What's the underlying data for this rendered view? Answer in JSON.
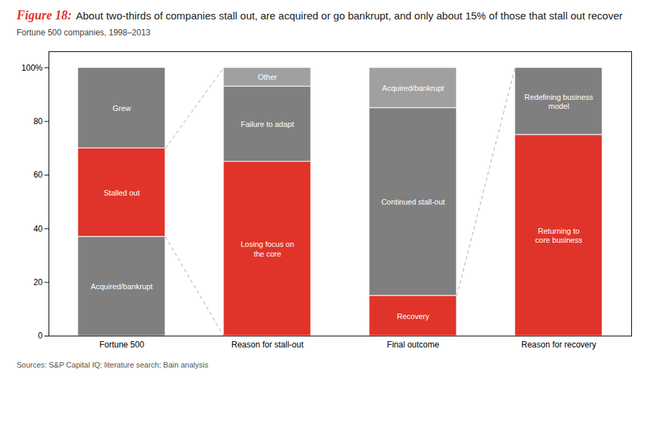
{
  "chart_data": {
    "type": "bar",
    "stacked": true,
    "title": "Figure 18: About two-thirds of companies stall out, are acquired or go bankrupt, and only about 15% of those that stall out recover",
    "subtitle": "Fortune 500 companies, 1998–2013",
    "source": "Sources: S&P Capital IQ; literature search; Bain analysis",
    "categories": [
      "Fortune 500",
      "Reason for stall-out",
      "Final outcome",
      "Reason for recovery"
    ],
    "bars": [
      {
        "segments": [
          {
            "name": "Acquired/bankrupt",
            "value": 37,
            "color": "#7f7f7f"
          },
          {
            "name": "Stalled out",
            "value": 33,
            "color": "#e0342a"
          },
          {
            "name": "Grew",
            "value": 30,
            "color": "#7f7f7f"
          }
        ]
      },
      {
        "segments": [
          {
            "name": "Losing focus on\nthe core",
            "value": 65,
            "color": "#e0342a"
          },
          {
            "name": "Failure to adapt",
            "value": 28,
            "color": "#7f7f7f"
          },
          {
            "name": "Other",
            "value": 7,
            "color": "#a0a0a0"
          }
        ]
      },
      {
        "segments": [
          {
            "name": "Recovery",
            "value": 15,
            "color": "#e0342a"
          },
          {
            "name": "Continued stall-out",
            "value": 70,
            "color": "#7f7f7f"
          },
          {
            "name": "Acquired/bankrupt",
            "value": 15,
            "color": "#a0a0a0"
          }
        ]
      },
      {
        "segments": [
          {
            "name": "Returning to\ncore business",
            "value": 75,
            "color": "#e0342a"
          },
          {
            "name": "Redefining business\nmodel",
            "value": 25,
            "color": "#7f7f7f"
          }
        ]
      }
    ],
    "connectors": [
      {
        "from": "Fortune 500",
        "segment": "Stalled out",
        "to": "Reason for stall-out"
      },
      {
        "from": "Final outcome",
        "segment": "Recovery",
        "to": "Reason for recovery"
      }
    ],
    "ylim": [
      0,
      106
    ],
    "yticks": [
      0,
      20,
      40,
      60,
      80,
      {
        "value": 100,
        "label": "100%"
      }
    ],
    "grid": false
  }
}
